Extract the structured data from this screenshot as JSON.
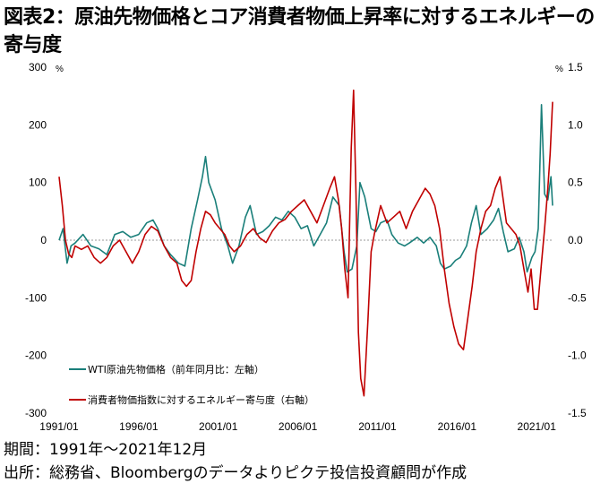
{
  "title": "図表2：原油先物価格とコア消費者物価上昇率に対するエネルギーの寄与度",
  "footnote_period": "期間：1991年～2021年12月",
  "footnote_source": "出所：総務省、Bloombergのデータよりピクテ投信投資顧問が作成",
  "chart_data": {
    "type": "line",
    "left_axis": {
      "unit": "%",
      "ylim": [
        -300,
        300
      ],
      "ticks": [
        "300",
        "200",
        "100",
        "0",
        "-100",
        "-200",
        "-300"
      ]
    },
    "right_axis": {
      "unit": "%",
      "ylim": [
        -1.5,
        1.5
      ],
      "ticks": [
        "1.5",
        "1.0",
        "0.5",
        "0.0",
        "-0.5",
        "-1.0",
        "-1.5"
      ]
    },
    "x_ticks": [
      "1991/01",
      "1996/01",
      "2001/01",
      "2006/01",
      "2011/01",
      "2016/01",
      "2021/01"
    ],
    "xlim": [
      1991.0,
      2022.0
    ],
    "grid": false,
    "legend_placement": "bottom-left",
    "colors": {
      "wti": "#1a7f7a",
      "energy": "#c00000"
    },
    "series": [
      {
        "name": "WTI原油先物価格（前年同月比：左軸）",
        "axis": "left",
        "points": [
          [
            1991.0,
            0
          ],
          [
            1991.25,
            20
          ],
          [
            1991.5,
            -40
          ],
          [
            1991.75,
            -10
          ],
          [
            1992.0,
            -5
          ],
          [
            1992.5,
            10
          ],
          [
            1993.0,
            -10
          ],
          [
            1993.5,
            -15
          ],
          [
            1994.0,
            -25
          ],
          [
            1994.5,
            10
          ],
          [
            1995.0,
            15
          ],
          [
            1995.5,
            5
          ],
          [
            1996.0,
            10
          ],
          [
            1996.5,
            30
          ],
          [
            1996.9,
            35
          ],
          [
            1997.2,
            20
          ],
          [
            1997.6,
            -10
          ],
          [
            1998.0,
            -25
          ],
          [
            1998.5,
            -40
          ],
          [
            1998.9,
            -45
          ],
          [
            1999.3,
            20
          ],
          [
            1999.7,
            70
          ],
          [
            2000.0,
            110
          ],
          [
            2000.2,
            145
          ],
          [
            2000.4,
            100
          ],
          [
            2000.8,
            70
          ],
          [
            2001.2,
            20
          ],
          [
            2001.6,
            -10
          ],
          [
            2001.9,
            -40
          ],
          [
            2002.3,
            -10
          ],
          [
            2002.7,
            40
          ],
          [
            2003.0,
            60
          ],
          [
            2003.4,
            10
          ],
          [
            2003.8,
            15
          ],
          [
            2004.2,
            25
          ],
          [
            2004.6,
            40
          ],
          [
            2005.0,
            35
          ],
          [
            2005.4,
            50
          ],
          [
            2005.8,
            40
          ],
          [
            2006.2,
            20
          ],
          [
            2006.6,
            25
          ],
          [
            2007.0,
            -10
          ],
          [
            2007.4,
            10
          ],
          [
            2007.8,
            30
          ],
          [
            2008.2,
            75
          ],
          [
            2008.6,
            60
          ],
          [
            2008.9,
            -20
          ],
          [
            2009.1,
            -55
          ],
          [
            2009.4,
            -50
          ],
          [
            2009.7,
            -10
          ],
          [
            2009.9,
            100
          ],
          [
            2010.2,
            75
          ],
          [
            2010.6,
            20
          ],
          [
            2010.9,
            15
          ],
          [
            2011.2,
            30
          ],
          [
            2011.6,
            35
          ],
          [
            2011.9,
            10
          ],
          [
            2012.3,
            -5
          ],
          [
            2012.7,
            -10
          ],
          [
            2013.0,
            -5
          ],
          [
            2013.5,
            5
          ],
          [
            2013.9,
            -5
          ],
          [
            2014.3,
            5
          ],
          [
            2014.7,
            -10
          ],
          [
            2014.95,
            -40
          ],
          [
            2015.2,
            -50
          ],
          [
            2015.6,
            -45
          ],
          [
            2015.9,
            -35
          ],
          [
            2016.2,
            -30
          ],
          [
            2016.6,
            -10
          ],
          [
            2016.9,
            30
          ],
          [
            2017.2,
            60
          ],
          [
            2017.5,
            10
          ],
          [
            2017.9,
            20
          ],
          [
            2018.3,
            35
          ],
          [
            2018.6,
            55
          ],
          [
            2018.9,
            15
          ],
          [
            2019.2,
            -20
          ],
          [
            2019.6,
            -15
          ],
          [
            2019.9,
            5
          ],
          [
            2020.2,
            -20
          ],
          [
            2020.4,
            -55
          ],
          [
            2020.7,
            -30
          ],
          [
            2020.9,
            -20
          ],
          [
            2021.1,
            20
          ],
          [
            2021.3,
            235
          ],
          [
            2021.5,
            80
          ],
          [
            2021.7,
            70
          ],
          [
            2021.9,
            110
          ],
          [
            2022.0,
            60
          ]
        ]
      },
      {
        "name": "消費者物価指数に対するエネルギー寄与度（右軸）",
        "axis": "right",
        "points": [
          [
            1991.0,
            0.55
          ],
          [
            1991.2,
            0.3
          ],
          [
            1991.4,
            0.0
          ],
          [
            1991.6,
            -0.12
          ],
          [
            1991.8,
            -0.15
          ],
          [
            1992.0,
            -0.05
          ],
          [
            1992.4,
            -0.08
          ],
          [
            1992.8,
            -0.05
          ],
          [
            1993.2,
            -0.15
          ],
          [
            1993.6,
            -0.2
          ],
          [
            1994.0,
            -0.15
          ],
          [
            1994.4,
            -0.05
          ],
          [
            1994.8,
            0.0
          ],
          [
            1995.2,
            -0.1
          ],
          [
            1995.6,
            -0.2
          ],
          [
            1996.0,
            -0.1
          ],
          [
            1996.4,
            0.05
          ],
          [
            1996.8,
            0.12
          ],
          [
            1997.2,
            0.08
          ],
          [
            1997.6,
            -0.05
          ],
          [
            1998.0,
            -0.15
          ],
          [
            1998.4,
            -0.2
          ],
          [
            1998.7,
            -0.35
          ],
          [
            1999.0,
            -0.4
          ],
          [
            1999.3,
            -0.35
          ],
          [
            1999.6,
            -0.1
          ],
          [
            1999.9,
            0.1
          ],
          [
            2000.2,
            0.25
          ],
          [
            2000.5,
            0.22
          ],
          [
            2000.8,
            0.15
          ],
          [
            2001.1,
            0.1
          ],
          [
            2001.4,
            0.05
          ],
          [
            2001.7,
            -0.05
          ],
          [
            2002.0,
            -0.1
          ],
          [
            2002.4,
            -0.05
          ],
          [
            2002.8,
            0.05
          ],
          [
            2003.2,
            0.1
          ],
          [
            2003.6,
            0.02
          ],
          [
            2004.0,
            -0.02
          ],
          [
            2004.4,
            0.08
          ],
          [
            2004.8,
            0.15
          ],
          [
            2005.2,
            0.18
          ],
          [
            2005.6,
            0.25
          ],
          [
            2006.0,
            0.3
          ],
          [
            2006.4,
            0.35
          ],
          [
            2006.8,
            0.25
          ],
          [
            2007.2,
            0.15
          ],
          [
            2007.6,
            0.3
          ],
          [
            2008.0,
            0.45
          ],
          [
            2008.3,
            0.55
          ],
          [
            2008.55,
            0.35
          ],
          [
            2008.75,
            0.1
          ],
          [
            2008.95,
            -0.25
          ],
          [
            2009.15,
            -0.5
          ],
          [
            2009.35,
            0.8
          ],
          [
            2009.5,
            1.3
          ],
          [
            2009.65,
            0.4
          ],
          [
            2009.8,
            -0.8
          ],
          [
            2009.95,
            -1.2
          ],
          [
            2010.15,
            -1.35
          ],
          [
            2010.4,
            -0.7
          ],
          [
            2010.6,
            -0.1
          ],
          [
            2010.8,
            0.05
          ],
          [
            2011.2,
            0.3
          ],
          [
            2011.6,
            0.15
          ],
          [
            2012.0,
            0.2
          ],
          [
            2012.4,
            0.25
          ],
          [
            2012.8,
            0.1
          ],
          [
            2013.2,
            0.25
          ],
          [
            2013.6,
            0.35
          ],
          [
            2014.0,
            0.45
          ],
          [
            2014.3,
            0.4
          ],
          [
            2014.6,
            0.3
          ],
          [
            2014.9,
            0.1
          ],
          [
            2015.2,
            -0.25
          ],
          [
            2015.5,
            -0.55
          ],
          [
            2015.8,
            -0.75
          ],
          [
            2016.1,
            -0.9
          ],
          [
            2016.4,
            -0.95
          ],
          [
            2016.7,
            -0.65
          ],
          [
            2016.95,
            -0.4
          ],
          [
            2017.2,
            -0.1
          ],
          [
            2017.5,
            0.1
          ],
          [
            2017.8,
            0.25
          ],
          [
            2018.1,
            0.3
          ],
          [
            2018.4,
            0.45
          ],
          [
            2018.7,
            0.55
          ],
          [
            2018.9,
            0.35
          ],
          [
            2019.1,
            0.15
          ],
          [
            2019.4,
            0.1
          ],
          [
            2019.7,
            0.05
          ],
          [
            2019.95,
            -0.05
          ],
          [
            2020.2,
            -0.25
          ],
          [
            2020.45,
            -0.45
          ],
          [
            2020.65,
            -0.25
          ],
          [
            2020.85,
            -0.6
          ],
          [
            2021.05,
            -0.6
          ],
          [
            2021.3,
            -0.2
          ],
          [
            2021.5,
            0.1
          ],
          [
            2021.7,
            0.45
          ],
          [
            2021.85,
            0.75
          ],
          [
            2022.0,
            1.2
          ]
        ]
      }
    ]
  }
}
